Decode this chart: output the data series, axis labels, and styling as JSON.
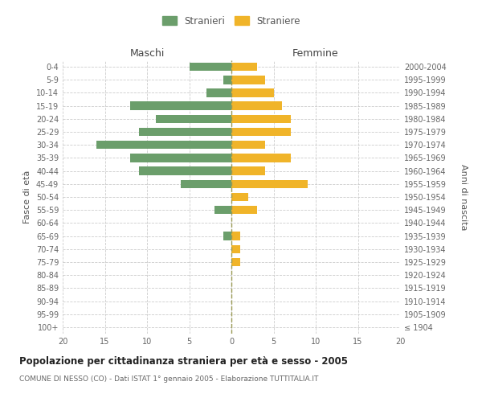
{
  "age_groups": [
    "100+",
    "95-99",
    "90-94",
    "85-89",
    "80-84",
    "75-79",
    "70-74",
    "65-69",
    "60-64",
    "55-59",
    "50-54",
    "45-49",
    "40-44",
    "35-39",
    "30-34",
    "25-29",
    "20-24",
    "15-19",
    "10-14",
    "5-9",
    "0-4"
  ],
  "birth_years": [
    "≤ 1904",
    "1905-1909",
    "1910-1914",
    "1915-1919",
    "1920-1924",
    "1925-1929",
    "1930-1934",
    "1935-1939",
    "1940-1944",
    "1945-1949",
    "1950-1954",
    "1955-1959",
    "1960-1964",
    "1965-1969",
    "1970-1974",
    "1975-1979",
    "1980-1984",
    "1985-1989",
    "1990-1994",
    "1995-1999",
    "2000-2004"
  ],
  "males": [
    0,
    0,
    0,
    0,
    0,
    0,
    0,
    1,
    0,
    2,
    0,
    6,
    11,
    12,
    16,
    11,
    9,
    12,
    3,
    1,
    5
  ],
  "females": [
    0,
    0,
    0,
    0,
    0,
    1,
    1,
    1,
    0,
    3,
    2,
    9,
    4,
    7,
    4,
    7,
    7,
    6,
    5,
    4,
    3
  ],
  "male_color": "#6b9e6b",
  "female_color": "#f0b429",
  "title": "Popolazione per cittadinanza straniera per età e sesso - 2005",
  "subtitle": "COMUNE DI NESSO (CO) - Dati ISTAT 1° gennaio 2005 - Elaborazione TUTTITALIA.IT",
  "xlabel_left": "Maschi",
  "xlabel_right": "Femmine",
  "ylabel_left": "Fasce di età",
  "ylabel_right": "Anni di nascita",
  "legend_males": "Stranieri",
  "legend_females": "Straniere",
  "xlim": 20,
  "background_color": "#ffffff",
  "grid_color": "#cccccc",
  "dashed_line_color": "#999955"
}
